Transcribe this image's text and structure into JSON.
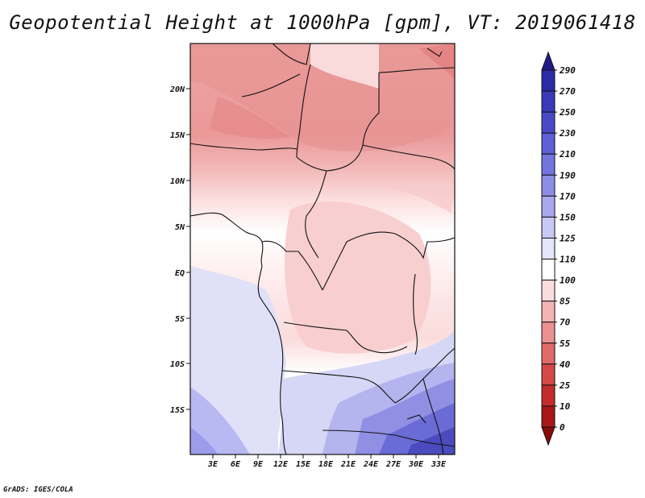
{
  "title": "Geopotential Height at 1000hPa [gpm], VT: 2019061418",
  "footer": "GrADS: IGES/COLA",
  "map": {
    "lat_labels": [
      "20N",
      "15N",
      "10N",
      "5N",
      "EQ",
      "5S",
      "10S",
      "15S"
    ],
    "lon_labels": [
      "3E",
      "6E",
      "9E",
      "12E",
      "15E",
      "18E",
      "21E",
      "24E",
      "27E",
      "30E",
      "33E"
    ]
  },
  "colorbar": {
    "labels": [
      "290",
      "270",
      "250",
      "230",
      "210",
      "190",
      "170",
      "150",
      "125",
      "110",
      "100",
      "85",
      "70",
      "55",
      "40",
      "25",
      "10",
      "0"
    ],
    "colors": [
      "#1f1a8c",
      "#2c2aa6",
      "#3a3ab8",
      "#4a4ac8",
      "#5e5ed6",
      "#7474e0",
      "#8d8de8",
      "#a8a8f0",
      "#c8c8f6",
      "#e4e4fa",
      "#ffffff",
      "#fbdcdc",
      "#f4b4b4",
      "#ec9090",
      "#e06a6a",
      "#d44848",
      "#c42c2c",
      "#a81818",
      "#8a0a0a"
    ]
  }
}
